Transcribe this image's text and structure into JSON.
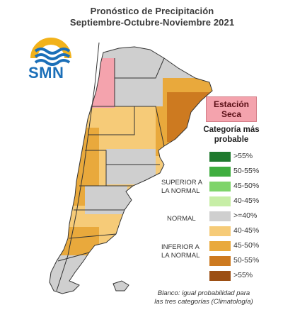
{
  "title": {
    "line1": "Pronóstico de Precipitación",
    "line2": "Septiembre-Octubre-Noviembre 2021"
  },
  "logo": {
    "text": "SMN",
    "icon": "smn-sun-waves-logo"
  },
  "dry_season": {
    "line1": "Estación",
    "line2": "Seca",
    "color": "#f4a3ad"
  },
  "legend": {
    "heading_line1": "Categoría más",
    "heading_line2": "probable",
    "items": [
      {
        "label": ">55%",
        "color": "#1f7a2e"
      },
      {
        "label": "50-55%",
        "color": "#3fae3f"
      },
      {
        "label": "45-50%",
        "color": "#7ed46a"
      },
      {
        "label": "40-45%",
        "color": "#c7eea6"
      },
      {
        "label": ">=40%",
        "color": "#cfcfcf"
      },
      {
        "label": "40-45%",
        "color": "#f6cb78"
      },
      {
        "label": "45-50%",
        "color": "#e9a93c"
      },
      {
        "label": "50-55%",
        "color": "#cd7a20"
      },
      {
        "label": ">55%",
        "color": "#9c4f14"
      }
    ],
    "groups": {
      "above_line1": "SUPERIOR A",
      "above_line2": "LA NORMAL",
      "normal": "NORMAL",
      "below_line1": "INFERIOR A",
      "below_line2": "LA NORMAL"
    }
  },
  "note": {
    "line1": "Blanco: igual probabilidad para",
    "line2": "las tres categorías (Climatología)"
  },
  "map_colors": {
    "gray": "#cfcfcf",
    "light_orange": "#f6cb78",
    "orange": "#e9a93c",
    "dark_orange": "#cd7a20",
    "pink": "#f4a3ad",
    "white": "#ffffff"
  }
}
